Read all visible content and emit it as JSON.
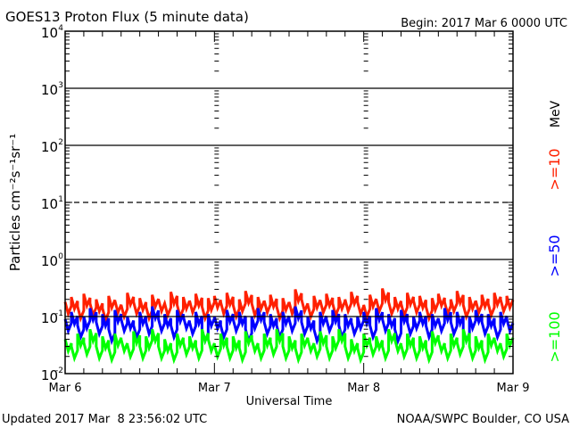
{
  "chart_data": {
    "type": "line",
    "title": "GOES13 Proton Flux (5 minute data)",
    "begin_label": "Begin: 2017 Mar 6 0000 UTC",
    "xlabel": "Universal Time",
    "ylabel": "Particles cm⁻²s⁻¹sr⁻¹",
    "x_tick_labels": [
      "Mar 6",
      "Mar 7",
      "Mar 8",
      "Mar 9"
    ],
    "x_range_days": [
      0,
      3
    ],
    "y_scale": "log",
    "ylim": [
      0.01,
      10000
    ],
    "y_tick_labels": [
      {
        "base": "10",
        "exp": "4"
      },
      {
        "base": "10",
        "exp": "3"
      },
      {
        "base": "10",
        "exp": "2"
      },
      {
        "base": "10",
        "exp": "1"
      },
      {
        "base": "10",
        "exp": "0"
      },
      {
        "base": "10",
        "exp": "-1"
      },
      {
        "base": "10",
        "exp": "-2"
      }
    ],
    "reference_lines": [
      {
        "value": 1000,
        "style": "solid"
      },
      {
        "value": 100,
        "style": "solid"
      },
      {
        "value": 10,
        "style": "dashed"
      },
      {
        "value": 1,
        "style": "solid"
      },
      {
        "value": 0.1,
        "style": "solid"
      }
    ],
    "unit_label": "MeV",
    "series": [
      {
        "name": ">=10",
        "color": "#ff2000",
        "values": [
          0.18,
          0.22,
          0.15,
          0.25,
          0.17,
          0.2,
          0.14,
          0.23,
          0.19,
          0.16,
          0.26,
          0.18,
          0.21,
          0.15,
          0.24,
          0.2,
          0.17,
          0.27,
          0.16,
          0.22,
          0.19,
          0.25,
          0.15,
          0.21,
          0.23,
          0.18,
          0.26,
          0.16,
          0.2,
          0.28,
          0.17,
          0.22,
          0.19,
          0.24,
          0.15,
          0.21,
          0.18,
          0.3,
          0.2,
          0.16,
          0.23,
          0.19,
          0.25,
          0.17,
          0.22,
          0.2,
          0.27,
          0.18,
          0.16,
          0.24,
          0.2,
          0.31,
          0.18,
          0.22,
          0.17,
          0.26,
          0.19,
          0.23,
          0.15,
          0.21,
          0.25,
          0.18,
          0.2,
          0.28,
          0.16,
          0.22,
          0.19,
          0.24,
          0.17,
          0.26,
          0.2,
          0.23
        ]
      },
      {
        "name": ">=50",
        "color": "#0000ff",
        "values": [
          0.09,
          0.12,
          0.07,
          0.1,
          0.14,
          0.08,
          0.11,
          0.06,
          0.13,
          0.09,
          0.1,
          0.07,
          0.12,
          0.08,
          0.15,
          0.09,
          0.11,
          0.07,
          0.13,
          0.1,
          0.08,
          0.12,
          0.06,
          0.11,
          0.1,
          0.07,
          0.13,
          0.09,
          0.12,
          0.06,
          0.1,
          0.14,
          0.08,
          0.11,
          0.07,
          0.12,
          0.09,
          0.15,
          0.08,
          0.1,
          0.06,
          0.12,
          0.09,
          0.13,
          0.07,
          0.11,
          0.08,
          0.1,
          0.12,
          0.07,
          0.14,
          0.09,
          0.11,
          0.06,
          0.13,
          0.08,
          0.1,
          0.12,
          0.07,
          0.11,
          0.09,
          0.14,
          0.08,
          0.12,
          0.06,
          0.1,
          0.13,
          0.08,
          0.11,
          0.07,
          0.12,
          0.09
        ]
      },
      {
        "name": ">=100",
        "color": "#00ff00",
        "values": [
          0.04,
          0.03,
          0.05,
          0.035,
          0.06,
          0.03,
          0.045,
          0.028,
          0.05,
          0.04,
          0.032,
          0.055,
          0.03,
          0.045,
          0.06,
          0.03,
          0.04,
          0.028,
          0.05,
          0.035,
          0.045,
          0.03,
          0.06,
          0.04,
          0.032,
          0.05,
          0.03,
          0.045,
          0.028,
          0.055,
          0.04,
          0.03,
          0.05,
          0.035,
          0.06,
          0.03,
          0.045,
          0.028,
          0.05,
          0.04,
          0.032,
          0.055,
          0.03,
          0.045,
          0.06,
          0.03,
          0.04,
          0.028,
          0.05,
          0.035,
          0.045,
          0.03,
          0.06,
          0.04,
          0.032,
          0.05,
          0.03,
          0.045,
          0.028,
          0.055,
          0.04,
          0.03,
          0.05,
          0.035,
          0.06,
          0.03,
          0.045,
          0.028,
          0.05,
          0.04,
          0.032,
          0.05
        ]
      }
    ]
  },
  "footer": {
    "updated": "Updated 2017 Mar  8 23:56:02 UTC",
    "credit": "NOAA/SWPC Boulder, CO USA"
  }
}
